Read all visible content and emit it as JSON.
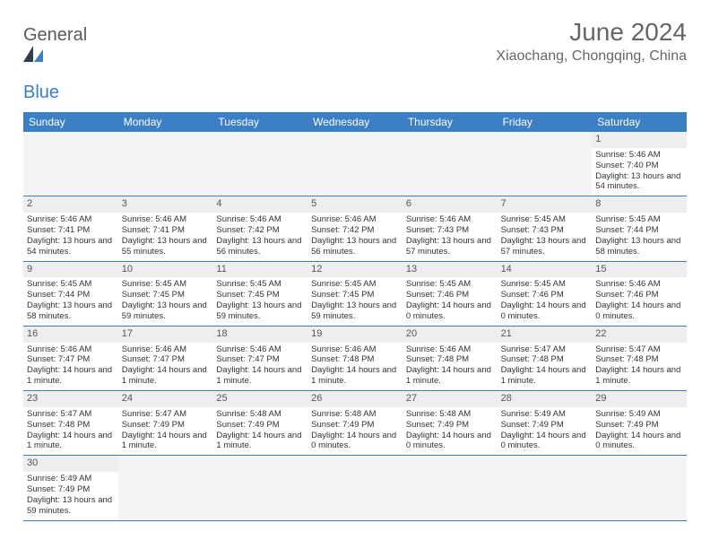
{
  "brand": {
    "name_a": "General",
    "name_b": "Blue"
  },
  "title": "June 2024",
  "location": "Xiaochang, Chongqing, China",
  "weekdays": [
    "Sunday",
    "Monday",
    "Tuesday",
    "Wednesday",
    "Thursday",
    "Friday",
    "Saturday"
  ],
  "colors": {
    "header_bg": "#3b7fc4",
    "daynum_bg": "#eeeeee",
    "empty_bg": "#f4f4f4",
    "text": "#333333",
    "title_text": "#666666"
  },
  "weeks": [
    [
      null,
      null,
      null,
      null,
      null,
      null,
      {
        "n": "1",
        "sunrise": "Sunrise: 5:46 AM",
        "sunset": "Sunset: 7:40 PM",
        "daylight": "Daylight: 13 hours and 54 minutes."
      }
    ],
    [
      {
        "n": "2",
        "sunrise": "Sunrise: 5:46 AM",
        "sunset": "Sunset: 7:41 PM",
        "daylight": "Daylight: 13 hours and 54 minutes."
      },
      {
        "n": "3",
        "sunrise": "Sunrise: 5:46 AM",
        "sunset": "Sunset: 7:41 PM",
        "daylight": "Daylight: 13 hours and 55 minutes."
      },
      {
        "n": "4",
        "sunrise": "Sunrise: 5:46 AM",
        "sunset": "Sunset: 7:42 PM",
        "daylight": "Daylight: 13 hours and 56 minutes."
      },
      {
        "n": "5",
        "sunrise": "Sunrise: 5:46 AM",
        "sunset": "Sunset: 7:42 PM",
        "daylight": "Daylight: 13 hours and 56 minutes."
      },
      {
        "n": "6",
        "sunrise": "Sunrise: 5:46 AM",
        "sunset": "Sunset: 7:43 PM",
        "daylight": "Daylight: 13 hours and 57 minutes."
      },
      {
        "n": "7",
        "sunrise": "Sunrise: 5:45 AM",
        "sunset": "Sunset: 7:43 PM",
        "daylight": "Daylight: 13 hours and 57 minutes."
      },
      {
        "n": "8",
        "sunrise": "Sunrise: 5:45 AM",
        "sunset": "Sunset: 7:44 PM",
        "daylight": "Daylight: 13 hours and 58 minutes."
      }
    ],
    [
      {
        "n": "9",
        "sunrise": "Sunrise: 5:45 AM",
        "sunset": "Sunset: 7:44 PM",
        "daylight": "Daylight: 13 hours and 58 minutes."
      },
      {
        "n": "10",
        "sunrise": "Sunrise: 5:45 AM",
        "sunset": "Sunset: 7:45 PM",
        "daylight": "Daylight: 13 hours and 59 minutes."
      },
      {
        "n": "11",
        "sunrise": "Sunrise: 5:45 AM",
        "sunset": "Sunset: 7:45 PM",
        "daylight": "Daylight: 13 hours and 59 minutes."
      },
      {
        "n": "12",
        "sunrise": "Sunrise: 5:45 AM",
        "sunset": "Sunset: 7:45 PM",
        "daylight": "Daylight: 13 hours and 59 minutes."
      },
      {
        "n": "13",
        "sunrise": "Sunrise: 5:45 AM",
        "sunset": "Sunset: 7:46 PM",
        "daylight": "Daylight: 14 hours and 0 minutes."
      },
      {
        "n": "14",
        "sunrise": "Sunrise: 5:45 AM",
        "sunset": "Sunset: 7:46 PM",
        "daylight": "Daylight: 14 hours and 0 minutes."
      },
      {
        "n": "15",
        "sunrise": "Sunrise: 5:46 AM",
        "sunset": "Sunset: 7:46 PM",
        "daylight": "Daylight: 14 hours and 0 minutes."
      }
    ],
    [
      {
        "n": "16",
        "sunrise": "Sunrise: 5:46 AM",
        "sunset": "Sunset: 7:47 PM",
        "daylight": "Daylight: 14 hours and 1 minute."
      },
      {
        "n": "17",
        "sunrise": "Sunrise: 5:46 AM",
        "sunset": "Sunset: 7:47 PM",
        "daylight": "Daylight: 14 hours and 1 minute."
      },
      {
        "n": "18",
        "sunrise": "Sunrise: 5:46 AM",
        "sunset": "Sunset: 7:47 PM",
        "daylight": "Daylight: 14 hours and 1 minute."
      },
      {
        "n": "19",
        "sunrise": "Sunrise: 5:46 AM",
        "sunset": "Sunset: 7:48 PM",
        "daylight": "Daylight: 14 hours and 1 minute."
      },
      {
        "n": "20",
        "sunrise": "Sunrise: 5:46 AM",
        "sunset": "Sunset: 7:48 PM",
        "daylight": "Daylight: 14 hours and 1 minute."
      },
      {
        "n": "21",
        "sunrise": "Sunrise: 5:47 AM",
        "sunset": "Sunset: 7:48 PM",
        "daylight": "Daylight: 14 hours and 1 minute."
      },
      {
        "n": "22",
        "sunrise": "Sunrise: 5:47 AM",
        "sunset": "Sunset: 7:48 PM",
        "daylight": "Daylight: 14 hours and 1 minute."
      }
    ],
    [
      {
        "n": "23",
        "sunrise": "Sunrise: 5:47 AM",
        "sunset": "Sunset: 7:48 PM",
        "daylight": "Daylight: 14 hours and 1 minute."
      },
      {
        "n": "24",
        "sunrise": "Sunrise: 5:47 AM",
        "sunset": "Sunset: 7:49 PM",
        "daylight": "Daylight: 14 hours and 1 minute."
      },
      {
        "n": "25",
        "sunrise": "Sunrise: 5:48 AM",
        "sunset": "Sunset: 7:49 PM",
        "daylight": "Daylight: 14 hours and 1 minute."
      },
      {
        "n": "26",
        "sunrise": "Sunrise: 5:48 AM",
        "sunset": "Sunset: 7:49 PM",
        "daylight": "Daylight: 14 hours and 0 minutes."
      },
      {
        "n": "27",
        "sunrise": "Sunrise: 5:48 AM",
        "sunset": "Sunset: 7:49 PM",
        "daylight": "Daylight: 14 hours and 0 minutes."
      },
      {
        "n": "28",
        "sunrise": "Sunrise: 5:49 AM",
        "sunset": "Sunset: 7:49 PM",
        "daylight": "Daylight: 14 hours and 0 minutes."
      },
      {
        "n": "29",
        "sunrise": "Sunrise: 5:49 AM",
        "sunset": "Sunset: 7:49 PM",
        "daylight": "Daylight: 14 hours and 0 minutes."
      }
    ],
    [
      {
        "n": "30",
        "sunrise": "Sunrise: 5:49 AM",
        "sunset": "Sunset: 7:49 PM",
        "daylight": "Daylight: 13 hours and 59 minutes."
      },
      null,
      null,
      null,
      null,
      null,
      null
    ]
  ]
}
